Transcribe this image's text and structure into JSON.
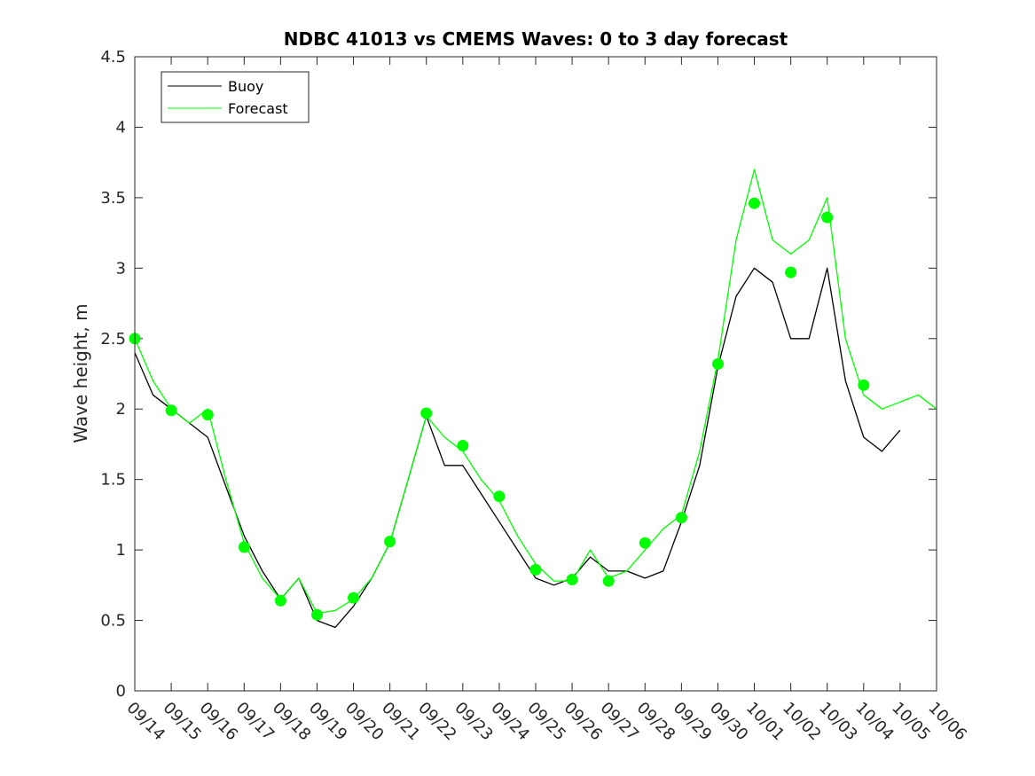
{
  "chart_data": {
    "type": "line",
    "title": "NDBC 41013 vs CMEMS Waves: 0 to 3 day forecast",
    "xlabel": "",
    "ylabel": "Wave height, m",
    "xlim": [
      "09/14",
      "10/06"
    ],
    "ylim": [
      0,
      4.5
    ],
    "y_ticks": [
      0,
      0.5,
      1,
      1.5,
      2,
      2.5,
      3,
      3.5,
      4,
      4.5
    ],
    "x_tick_labels": [
      "09/14",
      "09/15",
      "09/16",
      "09/17",
      "09/18",
      "09/19",
      "09/20",
      "09/21",
      "09/22",
      "09/23",
      "09/24",
      "09/25",
      "09/26",
      "09/27",
      "09/28",
      "09/29",
      "09/30",
      "10/01",
      "10/02",
      "10/03",
      "10/04",
      "10/05",
      "10/06"
    ],
    "grid": false,
    "legend_position": "top-left",
    "series": [
      {
        "name": "Buoy",
        "color": "#000000",
        "style": "line",
        "x": [
          "09/14",
          "09/14 12:00",
          "09/15",
          "09/15 12:00",
          "09/16",
          "09/16 12:00",
          "09/17",
          "09/17 12:00",
          "09/18",
          "09/18 12:00",
          "09/19",
          "09/19 12:00",
          "09/20",
          "09/20 12:00",
          "09/21",
          "09/21 12:00",
          "09/22",
          "09/22 12:00",
          "09/23",
          "09/23 12:00",
          "09/24",
          "09/24 12:00",
          "09/25",
          "09/25 12:00",
          "09/26",
          "09/26 12:00",
          "09/27",
          "09/27 12:00",
          "09/28",
          "09/28 12:00",
          "09/29",
          "09/29 12:00",
          "09/30",
          "09/30 12:00",
          "10/01",
          "10/01 12:00",
          "10/02",
          "10/02 12:00",
          "10/03",
          "10/03 12:00",
          "10/04",
          "10/04 12:00",
          "10/05"
        ],
        "y": [
          2.4,
          2.1,
          2.0,
          1.9,
          1.8,
          1.45,
          1.1,
          0.85,
          0.65,
          0.8,
          0.5,
          0.45,
          0.6,
          0.8,
          1.05,
          1.5,
          1.95,
          1.6,
          1.6,
          1.4,
          1.2,
          1.0,
          0.8,
          0.75,
          0.8,
          0.95,
          0.85,
          0.85,
          0.8,
          0.85,
          1.2,
          1.6,
          2.3,
          2.8,
          3.0,
          2.9,
          2.5,
          2.5,
          3.0,
          2.2,
          1.8,
          1.7,
          1.85
        ]
      },
      {
        "name": "Forecast",
        "color": "#00ff00",
        "style": "line",
        "x": [
          "09/14",
          "09/14 12:00",
          "09/15",
          "09/15 12:00",
          "09/16",
          "09/16 12:00",
          "09/17",
          "09/17 12:00",
          "09/18",
          "09/18 12:00",
          "09/19",
          "09/19 12:00",
          "09/20",
          "09/20 12:00",
          "09/21",
          "09/21 12:00",
          "09/22",
          "09/22 12:00",
          "09/23",
          "09/23 12:00",
          "09/24",
          "09/24 12:00",
          "09/25",
          "09/25 12:00",
          "09/26",
          "09/26 12:00",
          "09/27",
          "09/27 12:00",
          "09/28",
          "09/28 12:00",
          "09/29",
          "09/29 12:00",
          "09/30",
          "09/30 12:00",
          "10/01",
          "10/01 12:00",
          "10/02",
          "10/02 12:00",
          "10/03",
          "10/03 12:00",
          "10/04",
          "10/04 12:00",
          "10/05",
          "10/05 12:00",
          "10/06"
        ],
        "y": [
          2.5,
          2.2,
          2.0,
          1.9,
          2.0,
          1.5,
          1.05,
          0.8,
          0.65,
          0.8,
          0.55,
          0.57,
          0.65,
          0.8,
          1.05,
          1.5,
          1.95,
          1.8,
          1.7,
          1.5,
          1.35,
          1.1,
          0.9,
          0.78,
          0.78,
          1.0,
          0.8,
          0.85,
          1.0,
          1.15,
          1.25,
          1.7,
          2.35,
          3.2,
          3.7,
          3.2,
          3.1,
          3.2,
          3.5,
          2.5,
          2.1,
          2.0,
          2.05,
          2.1,
          2.0
        ]
      }
    ],
    "forecast_markers": {
      "name": "Forecast",
      "color": "#00ff00",
      "x": [
        "09/14",
        "09/15",
        "09/16",
        "09/17",
        "09/18",
        "09/19",
        "09/20",
        "09/21",
        "09/22",
        "09/23",
        "09/24",
        "09/25",
        "09/26",
        "09/27",
        "09/28",
        "09/29",
        "09/30",
        "10/01",
        "10/02",
        "10/03",
        "10/04"
      ],
      "y": [
        2.5,
        1.99,
        1.96,
        1.02,
        0.64,
        0.54,
        0.66,
        1.06,
        1.97,
        1.74,
        1.38,
        0.86,
        0.79,
        0.78,
        1.05,
        1.23,
        2.32,
        3.46,
        2.97,
        3.36,
        2.17
      ]
    }
  }
}
